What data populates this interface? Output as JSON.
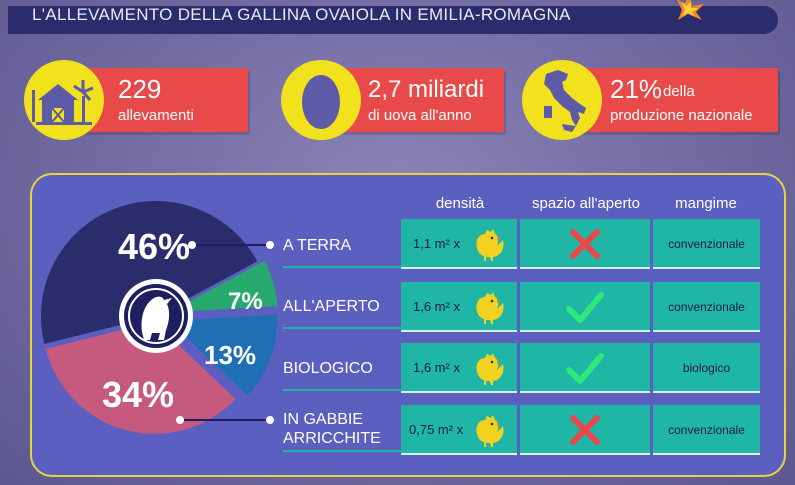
{
  "header": {
    "title": "L'ALLEVAMENTO DELLA GALLINA OVAIOLA IN EMILIA-ROMAGNA"
  },
  "stats": [
    {
      "icon": "farm-icon",
      "value": "229",
      "label": "allevamenti"
    },
    {
      "icon": "egg-icon",
      "value": "2,7 miliardi",
      "label": "di uova all'anno"
    },
    {
      "icon": "italy-map-icon",
      "value": "21%",
      "value_suffix": "della",
      "label": "produzione nazionale"
    }
  ],
  "table": {
    "headers": {
      "density": "densità",
      "outdoor": "spazio all'aperto",
      "feed": "mangime"
    },
    "rows": [
      {
        "category": "A TERRA",
        "category_line2": "",
        "percent": "46%",
        "share": 46,
        "color": "#2b2c6c",
        "density": "1,1 m² x",
        "outdoor": false,
        "feed": "convenzionale"
      },
      {
        "category": "ALL'APERTO",
        "category_line2": "",
        "percent": "7%",
        "share": 7,
        "color": "#27a96e",
        "density": "1,6 m² x",
        "outdoor": true,
        "feed": "convenzionale"
      },
      {
        "category": "BIOLOGICO",
        "category_line2": "",
        "percent": "13%",
        "share": 13,
        "color": "#1f6fb5",
        "density": "1,6 m² x",
        "outdoor": true,
        "feed": "biologico"
      },
      {
        "category": "IN GABBIE",
        "category_line2": "ARRICCHITE",
        "percent": "34%",
        "share": 34,
        "color": "#c65a7e",
        "density": "0,75 m² x",
        "outdoor": false,
        "feed": "convenzionale"
      }
    ]
  },
  "colors": {
    "title_bar": "#2b2c6c",
    "accent_yellow": "#f2e21e",
    "stat_red": "#e84a4a",
    "panel": "#5b5fc0",
    "cell_teal": "#1fb6a6",
    "check_green": "#2ee87a",
    "cross_red": "#e8474b"
  }
}
